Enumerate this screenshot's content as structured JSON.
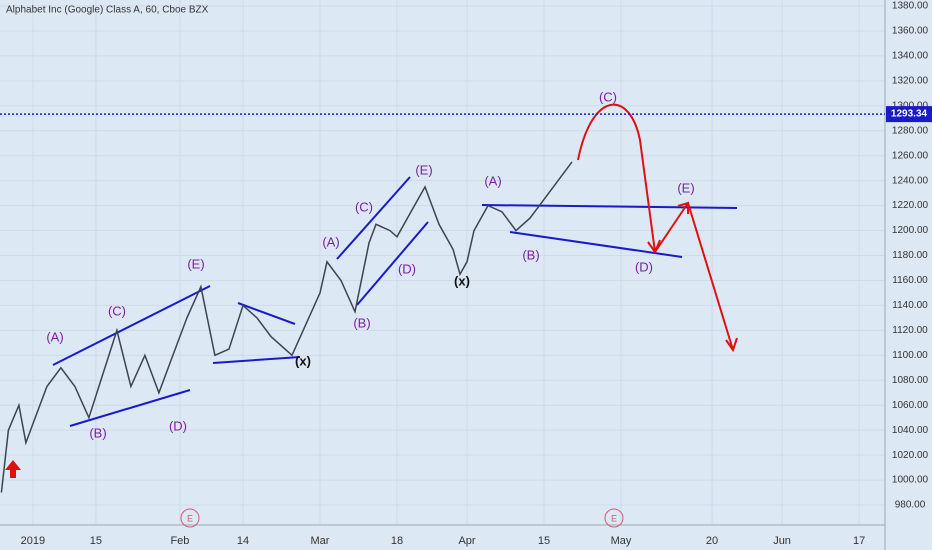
{
  "chart_data": {
    "type": "line",
    "title": "Alphabet Inc (Google) Class A, 60, Cboe BZX",
    "x": [
      -4.5,
      -3.5,
      -2,
      -1,
      0,
      2,
      4,
      6,
      8,
      10,
      12,
      14,
      16,
      18,
      20,
      22,
      24,
      26,
      28,
      30,
      32,
      34,
      36,
      37,
      39,
      41,
      42,
      44,
      46,
      48,
      49,
      51,
      52,
      54,
      56,
      58,
      60,
      61,
      62,
      63,
      65,
      67,
      69,
      71,
      73,
      75,
      77
    ],
    "values": [
      990,
      1040,
      1060,
      1030,
      1045,
      1075,
      1090,
      1075,
      1050,
      1085,
      1120,
      1075,
      1100,
      1070,
      1100,
      1130,
      1155,
      1100,
      1105,
      1140,
      1130,
      1115,
      1105,
      1100,
      1125,
      1150,
      1175,
      1160,
      1135,
      1190,
      1205,
      1200,
      1195,
      1215,
      1235,
      1205,
      1185,
      1165,
      1175,
      1200,
      1220,
      1215,
      1200,
      1210,
      1225,
      1240,
      1255
    ],
    "color": "#3d4451",
    "xlim": [
      -4.7,
      121.7
    ],
    "xticks": [
      {
        "value": 0,
        "label": "2019"
      },
      {
        "value": 9,
        "label": "15"
      },
      {
        "value": 21,
        "label": "Feb"
      },
      {
        "value": 30,
        "label": "14"
      },
      {
        "value": 41,
        "label": "Mar"
      },
      {
        "value": 52,
        "label": "18"
      },
      {
        "value": 62,
        "label": "Apr"
      },
      {
        "value": 73,
        "label": "15"
      },
      {
        "value": 84,
        "label": "May"
      },
      {
        "value": 97,
        "label": "20"
      },
      {
        "value": 107,
        "label": "Jun"
      },
      {
        "value": 118,
        "label": "17"
      }
    ],
    "ylim": [
      964,
      1384.8
    ],
    "yticks": [
      {
        "value": 980,
        "label": "980.00"
      },
      {
        "value": 1000,
        "label": "1000.00"
      },
      {
        "value": 1020,
        "label": "1020.00"
      },
      {
        "value": 1040,
        "label": "1040.00"
      },
      {
        "value": 1060,
        "label": "1060.00"
      },
      {
        "value": 1080,
        "label": "1080.00"
      },
      {
        "value": 1100,
        "label": "1100.00"
      },
      {
        "value": 1120,
        "label": "1120.00"
      },
      {
        "value": 1140,
        "label": "1140.00"
      },
      {
        "value": 1160,
        "label": "1160.00"
      },
      {
        "value": 1180,
        "label": "1180.00"
      },
      {
        "value": 1200,
        "label": "1200.00"
      },
      {
        "value": 1220,
        "label": "1220.00"
      },
      {
        "value": 1240,
        "label": "1240.00"
      },
      {
        "value": 1260,
        "label": "1260.00"
      },
      {
        "value": 1280,
        "label": "1280.00"
      },
      {
        "value": 1300,
        "label": "1300.00"
      },
      {
        "value": 1320,
        "label": "1320.00"
      },
      {
        "value": 1340,
        "label": "1340.00"
      },
      {
        "value": 1360,
        "label": "1360.00"
      },
      {
        "value": 1380,
        "label": "1380.00"
      }
    ],
    "price_line": 1293.34,
    "wave_labels": [
      "(A)",
      "(B)",
      "(C)",
      "(D)",
      "(E)",
      "(x)",
      "(A)",
      "(B)",
      "(C)",
      "(D)",
      "(E)",
      "(x)",
      "(A)",
      "(B)",
      "(C)",
      "(D)",
      "(E)"
    ],
    "events": [
      "E",
      "E"
    ],
    "grid": true
  }
}
